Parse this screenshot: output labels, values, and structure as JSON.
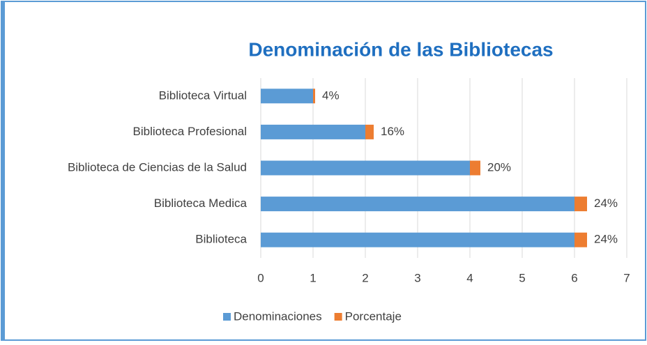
{
  "chart_data": {
    "type": "bar",
    "orientation": "horizontal",
    "stacked": true,
    "title": "Denominación de las Bibliotecas",
    "categories": [
      "Biblioteca  Virtual",
      "Biblioteca Profesional",
      "Biblioteca de Ciencias de la Salud",
      "Biblioteca Medica",
      "Biblioteca"
    ],
    "series": [
      {
        "name": "Denominaciones",
        "color": "#5b9bd5",
        "values": [
          1,
          2,
          4,
          6,
          6
        ]
      },
      {
        "name": "Porcentaje",
        "color": "#ed7d31",
        "values": [
          0.04,
          0.16,
          0.2,
          0.24,
          0.24
        ],
        "value_labels": [
          "4%",
          "16%",
          "20%",
          "24%",
          "24%"
        ]
      }
    ],
    "xlim": [
      0,
      7
    ],
    "xticks": [
      0,
      1,
      2,
      3,
      4,
      5,
      6,
      7
    ],
    "grid": true,
    "legend": "bottom"
  }
}
